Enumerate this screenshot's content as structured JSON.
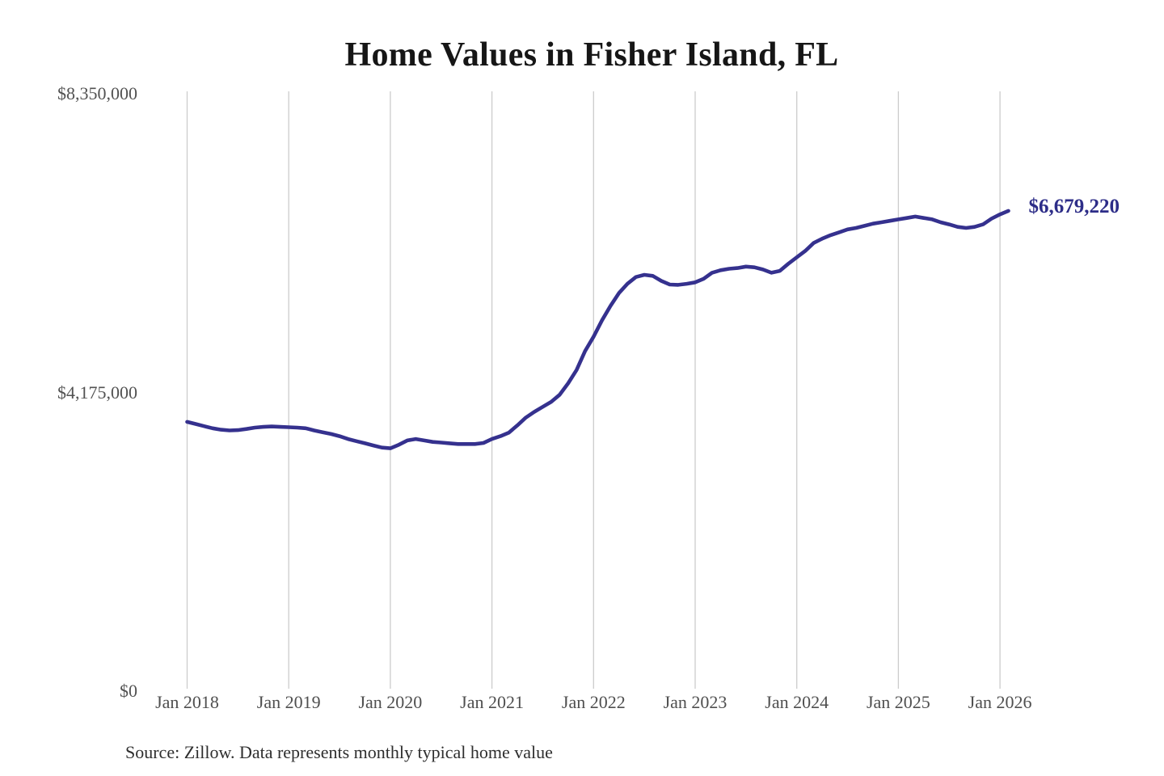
{
  "chart_data": {
    "type": "line",
    "title": "Home Values in Fisher Island, FL",
    "xlabel": "",
    "ylabel": "",
    "ylim": [
      0,
      8350000
    ],
    "gridlines": "vertical-only",
    "legend": "none",
    "line_color": "#35318E",
    "grid_color": "#CCCCCC",
    "end_label": "$6,679,220",
    "end_value": 6679220,
    "y_ticks": [
      {
        "label": "$8,350,000",
        "value": 8350000
      },
      {
        "label": "$4,175,000",
        "value": 4175000
      },
      {
        "label": "$0",
        "value": 0
      }
    ],
    "x_ticks": [
      {
        "label": "Jan 2018",
        "month_index": 0
      },
      {
        "label": "Jan 2019",
        "month_index": 12
      },
      {
        "label": "Jan 2020",
        "month_index": 24
      },
      {
        "label": "Jan 2021",
        "month_index": 36
      },
      {
        "label": "Jan 2022",
        "month_index": 48
      },
      {
        "label": "Jan 2023",
        "month_index": 60
      },
      {
        "label": "Jan 2024",
        "month_index": 72
      },
      {
        "label": "Jan 2025",
        "month_index": 84
      },
      {
        "label": "Jan 2026",
        "month_index": 96
      }
    ],
    "series": [
      {
        "name": "Monthly typical home value",
        "start_month": "2018-01",
        "frequency": "monthly",
        "values": [
          3730000,
          3700000,
          3670000,
          3640000,
          3620000,
          3610000,
          3615000,
          3630000,
          3650000,
          3660000,
          3665000,
          3660000,
          3655000,
          3650000,
          3640000,
          3610000,
          3585000,
          3560000,
          3530000,
          3490000,
          3460000,
          3430000,
          3400000,
          3370000,
          3360000,
          3410000,
          3470000,
          3490000,
          3470000,
          3450000,
          3440000,
          3430000,
          3420000,
          3420000,
          3420000,
          3435000,
          3490000,
          3530000,
          3580000,
          3680000,
          3790000,
          3870000,
          3940000,
          4010000,
          4110000,
          4270000,
          4455000,
          4720000,
          4920000,
          5150000,
          5350000,
          5530000,
          5660000,
          5755000,
          5785000,
          5770000,
          5700000,
          5650000,
          5645000,
          5660000,
          5680000,
          5730000,
          5815000,
          5850000,
          5870000,
          5880000,
          5900000,
          5890000,
          5860000,
          5815000,
          5840000,
          5940000,
          6030000,
          6120000,
          6230000,
          6290000,
          6340000,
          6380000,
          6420000,
          6440000,
          6470000,
          6500000,
          6520000,
          6540000,
          6560000,
          6580000,
          6600000,
          6580000,
          6560000,
          6520000,
          6490000,
          6455000,
          6440000,
          6455000,
          6490000,
          6570000,
          6630000,
          6679220
        ]
      }
    ]
  },
  "footer": {
    "source": "Source: Zillow. Data represents monthly typical home value"
  }
}
